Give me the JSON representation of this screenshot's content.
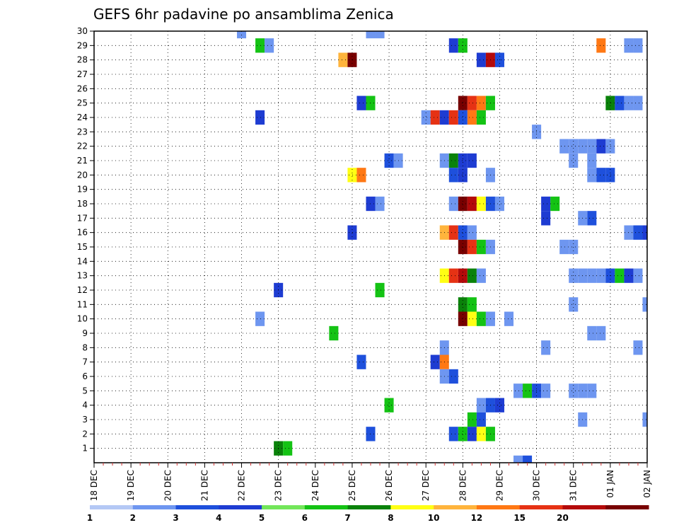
{
  "chart_data": {
    "type": "heatmap",
    "title": "GEFS 6hr padavine po ansamblima Zenica",
    "xlabel": "",
    "ylabel": "",
    "x_tick_labels": [
      "18 DEC",
      "19 DEC",
      "20 DEC",
      "21 DEC",
      "22 DEC",
      "23 DEC",
      "24 DEC",
      "25 DEC",
      "26 DEC",
      "27 DEC",
      "28 DEC",
      "29 DEC",
      "30 DEC",
      "31 DEC",
      "01 JAN",
      "02 JAN"
    ],
    "y_tick_labels": [
      "1",
      "2",
      "3",
      "4",
      "5",
      "6",
      "7",
      "8",
      "9",
      "10",
      "11",
      "12",
      "13",
      "14",
      "15",
      "16",
      "17",
      "18",
      "19",
      "20",
      "21",
      "22",
      "23",
      "24",
      "25",
      "26",
      "27",
      "28",
      "29",
      "30"
    ],
    "xlim": [
      "18 DEC 00Z",
      "02 JAN 00Z"
    ],
    "ylim": [
      0,
      30
    ],
    "x_step_hours": 6,
    "grid": true,
    "legend_position": "bottom",
    "colorbar": {
      "labels": [
        "1",
        "2",
        "3",
        "4",
        "5",
        "6",
        "7",
        "8",
        "10",
        "12",
        "15",
        "20"
      ],
      "colors": [
        "#b4c8f5",
        "#6e96f0",
        "#1e50dc",
        "#1e3cd2",
        "#73e65a",
        "#14c314",
        "#0a820a",
        "#ffff14",
        "#ffb43c",
        "#ff7814",
        "#e63214",
        "#b40a0a",
        "#780000"
      ]
    },
    "cells": [
      {
        "t": "22 DEC 00Z",
        "member": 30,
        "value": 1
      },
      {
        "t": "25 DEC 12Z",
        "member": 30,
        "value": 1
      },
      {
        "t": "25 DEC 18Z",
        "member": 30,
        "value": 1
      },
      {
        "t": "22 DEC 12Z",
        "member": 29,
        "value": 5
      },
      {
        "t": "22 DEC 18Z",
        "member": 29,
        "value": 1
      },
      {
        "t": "27 DEC 18Z",
        "member": 29,
        "value": 3
      },
      {
        "t": "28 DEC 00Z",
        "member": 29,
        "value": 5
      },
      {
        "t": "31 DEC 18Z",
        "member": 29,
        "value": 10
      },
      {
        "t": "01 JAN 12Z",
        "member": 29,
        "value": 1
      },
      {
        "t": "01 JAN 18Z",
        "member": 29,
        "value": 1
      },
      {
        "t": "24 DEC 18Z",
        "member": 28,
        "value": 8
      },
      {
        "t": "25 DEC 00Z",
        "member": 28,
        "value": 20
      },
      {
        "t": "28 DEC 12Z",
        "member": 28,
        "value": 3
      },
      {
        "t": "28 DEC 18Z",
        "member": 28,
        "value": 15
      },
      {
        "t": "29 DEC 00Z",
        "member": 28,
        "value": 2
      },
      {
        "t": "25 DEC 06Z",
        "member": 25,
        "value": 3
      },
      {
        "t": "25 DEC 12Z",
        "member": 25,
        "value": 5
      },
      {
        "t": "28 DEC 00Z",
        "member": 25,
        "value": 20
      },
      {
        "t": "28 DEC 06Z",
        "member": 25,
        "value": 12
      },
      {
        "t": "28 DEC 12Z",
        "member": 25,
        "value": 10
      },
      {
        "t": "28 DEC 18Z",
        "member": 25,
        "value": 5
      },
      {
        "t": "01 JAN 00Z",
        "member": 25,
        "value": 6
      },
      {
        "t": "01 JAN 06Z",
        "member": 25,
        "value": 2
      },
      {
        "t": "01 JAN 12Z",
        "member": 25,
        "value": 1
      },
      {
        "t": "01 JAN 18Z",
        "member": 25,
        "value": 1
      },
      {
        "t": "22 DEC 12Z",
        "member": 24,
        "value": 3
      },
      {
        "t": "27 DEC 00Z",
        "member": 24,
        "value": 1
      },
      {
        "t": "27 DEC 06Z",
        "member": 24,
        "value": 12
      },
      {
        "t": "27 DEC 12Z",
        "member": 24,
        "value": 3
      },
      {
        "t": "27 DEC 18Z",
        "member": 24,
        "value": 12
      },
      {
        "t": "28 DEC 00Z",
        "member": 24,
        "value": 2
      },
      {
        "t": "28 DEC 06Z",
        "member": 24,
        "value": 10
      },
      {
        "t": "28 DEC 12Z",
        "member": 24,
        "value": 5
      },
      {
        "t": "30 DEC 00Z",
        "member": 23,
        "value": 1
      },
      {
        "t": "30 DEC 18Z",
        "member": 22,
        "value": 1
      },
      {
        "t": "31 DEC 00Z",
        "member": 22,
        "value": 1
      },
      {
        "t": "31 DEC 06Z",
        "member": 22,
        "value": 1
      },
      {
        "t": "31 DEC 12Z",
        "member": 22,
        "value": 1
      },
      {
        "t": "31 DEC 18Z",
        "member": 22,
        "value": 3
      },
      {
        "t": "01 JAN 00Z",
        "member": 22,
        "value": 1
      },
      {
        "t": "26 DEC 00Z",
        "member": 21,
        "value": 2
      },
      {
        "t": "26 DEC 06Z",
        "member": 21,
        "value": 1
      },
      {
        "t": "27 DEC 12Z",
        "member": 21,
        "value": 1
      },
      {
        "t": "27 DEC 18Z",
        "member": 21,
        "value": 6
      },
      {
        "t": "28 DEC 00Z",
        "member": 21,
        "value": 3
      },
      {
        "t": "28 DEC 06Z",
        "member": 21,
        "value": 3
      },
      {
        "t": "31 DEC 00Z",
        "member": 21,
        "value": 1
      },
      {
        "t": "31 DEC 12Z",
        "member": 21,
        "value": 1
      },
      {
        "t": "25 DEC 00Z",
        "member": 20,
        "value": 7
      },
      {
        "t": "25 DEC 06Z",
        "member": 20,
        "value": 10
      },
      {
        "t": "27 DEC 18Z",
        "member": 20,
        "value": 2
      },
      {
        "t": "28 DEC 00Z",
        "member": 20,
        "value": 3
      },
      {
        "t": "28 DEC 18Z",
        "member": 20,
        "value": 1
      },
      {
        "t": "31 DEC 12Z",
        "member": 20,
        "value": 1
      },
      {
        "t": "31 DEC 18Z",
        "member": 20,
        "value": 2
      },
      {
        "t": "01 JAN 00Z",
        "member": 20,
        "value": 2
      },
      {
        "t": "25 DEC 12Z",
        "member": 18,
        "value": 3
      },
      {
        "t": "25 DEC 18Z",
        "member": 18,
        "value": 1
      },
      {
        "t": "27 DEC 18Z",
        "member": 18,
        "value": 1
      },
      {
        "t": "28 DEC 00Z",
        "member": 18,
        "value": 20
      },
      {
        "t": "28 DEC 06Z",
        "member": 18,
        "value": 15
      },
      {
        "t": "28 DEC 12Z",
        "member": 18,
        "value": 7
      },
      {
        "t": "28 DEC 18Z",
        "member": 18,
        "value": 2
      },
      {
        "t": "29 DEC 00Z",
        "member": 18,
        "value": 1
      },
      {
        "t": "30 DEC 06Z",
        "member": 18,
        "value": 3
      },
      {
        "t": "30 DEC 12Z",
        "member": 18,
        "value": 5
      },
      {
        "t": "30 DEC 06Z",
        "member": 17,
        "value": 3
      },
      {
        "t": "31 DEC 12Z",
        "member": 17,
        "value": 2
      },
      {
        "t": "31 DEC 06Z",
        "member": 17,
        "value": 1
      },
      {
        "t": "25 DEC 00Z",
        "member": 16,
        "value": 3
      },
      {
        "t": "27 DEC 12Z",
        "member": 16,
        "value": 8
      },
      {
        "t": "27 DEC 18Z",
        "member": 16,
        "value": 12
      },
      {
        "t": "28 DEC 00Z",
        "member": 16,
        "value": 2
      },
      {
        "t": "28 DEC 06Z",
        "member": 16,
        "value": 1
      },
      {
        "t": "01 JAN 12Z",
        "member": 16,
        "value": 1
      },
      {
        "t": "01 JAN 18Z",
        "member": 16,
        "value": 2
      },
      {
        "t": "02 JAN 00Z",
        "member": 16,
        "value": 3
      },
      {
        "t": "28 DEC 00Z",
        "member": 15,
        "value": 20
      },
      {
        "t": "28 DEC 06Z",
        "member": 15,
        "value": 12
      },
      {
        "t": "28 DEC 12Z",
        "member": 15,
        "value": 5
      },
      {
        "t": "28 DEC 18Z",
        "member": 15,
        "value": 1
      },
      {
        "t": "30 DEC 18Z",
        "member": 15,
        "value": 1
      },
      {
        "t": "31 DEC 00Z",
        "member": 15,
        "value": 1
      },
      {
        "t": "27 DEC 12Z",
        "member": 13,
        "value": 7
      },
      {
        "t": "27 DEC 18Z",
        "member": 13,
        "value": 12
      },
      {
        "t": "28 DEC 00Z",
        "member": 13,
        "value": 15
      },
      {
        "t": "28 DEC 06Z",
        "member": 13,
        "value": 6
      },
      {
        "t": "28 DEC 12Z",
        "member": 13,
        "value": 1
      },
      {
        "t": "31 DEC 00Z",
        "member": 13,
        "value": 1
      },
      {
        "t": "31 DEC 06Z",
        "member": 13,
        "value": 1
      },
      {
        "t": "31 DEC 12Z",
        "member": 13,
        "value": 1
      },
      {
        "t": "31 DEC 18Z",
        "member": 13,
        "value": 1
      },
      {
        "t": "01 JAN 00Z",
        "member": 13,
        "value": 2
      },
      {
        "t": "01 JAN 06Z",
        "member": 13,
        "value": 5
      },
      {
        "t": "01 JAN 12Z",
        "member": 13,
        "value": 3
      },
      {
        "t": "01 JAN 18Z",
        "member": 13,
        "value": 1
      },
      {
        "t": "23 DEC 00Z",
        "member": 12,
        "value": 3
      },
      {
        "t": "25 DEC 18Z",
        "member": 12,
        "value": 5
      },
      {
        "t": "28 DEC 00Z",
        "member": 11,
        "value": 6
      },
      {
        "t": "28 DEC 06Z",
        "member": 11,
        "value": 5
      },
      {
        "t": "31 DEC 00Z",
        "member": 11,
        "value": 1
      },
      {
        "t": "02 JAN 00Z",
        "member": 11,
        "value": 1
      },
      {
        "t": "22 DEC 12Z",
        "member": 10,
        "value": 1
      },
      {
        "t": "28 DEC 00Z",
        "member": 10,
        "value": 20
      },
      {
        "t": "28 DEC 06Z",
        "member": 10,
        "value": 7
      },
      {
        "t": "28 DEC 12Z",
        "member": 10,
        "value": 5
      },
      {
        "t": "28 DEC 18Z",
        "member": 10,
        "value": 1
      },
      {
        "t": "29 DEC 06Z",
        "member": 10,
        "value": 1
      },
      {
        "t": "24 DEC 12Z",
        "member": 9,
        "value": 5
      },
      {
        "t": "31 DEC 12Z",
        "member": 9,
        "value": 1
      },
      {
        "t": "31 DEC 18Z",
        "member": 9,
        "value": 1
      },
      {
        "t": "27 DEC 12Z",
        "member": 8,
        "value": 1
      },
      {
        "t": "30 DEC 06Z",
        "member": 8,
        "value": 1
      },
      {
        "t": "01 JAN 18Z",
        "member": 8,
        "value": 1
      },
      {
        "t": "25 DEC 06Z",
        "member": 7,
        "value": 2
      },
      {
        "t": "27 DEC 06Z",
        "member": 7,
        "value": 3
      },
      {
        "t": "27 DEC 12Z",
        "member": 7,
        "value": 10
      },
      {
        "t": "27 DEC 12Z",
        "member": 6,
        "value": 1
      },
      {
        "t": "27 DEC 18Z",
        "member": 6,
        "value": 2
      },
      {
        "t": "29 DEC 12Z",
        "member": 5,
        "value": 1
      },
      {
        "t": "29 DEC 18Z",
        "member": 5,
        "value": 5
      },
      {
        "t": "30 DEC 00Z",
        "member": 5,
        "value": 2
      },
      {
        "t": "30 DEC 06Z",
        "member": 5,
        "value": 1
      },
      {
        "t": "31 DEC 00Z",
        "member": 5,
        "value": 1
      },
      {
        "t": "31 DEC 06Z",
        "member": 5,
        "value": 1
      },
      {
        "t": "31 DEC 12Z",
        "member": 5,
        "value": 1
      },
      {
        "t": "26 DEC 00Z",
        "member": 4,
        "value": 5
      },
      {
        "t": "28 DEC 12Z",
        "member": 4,
        "value": 1
      },
      {
        "t": "28 DEC 18Z",
        "member": 4,
        "value": 2
      },
      {
        "t": "29 DEC 00Z",
        "member": 4,
        "value": 3
      },
      {
        "t": "28 DEC 06Z",
        "member": 3,
        "value": 5
      },
      {
        "t": "28 DEC 12Z",
        "member": 3,
        "value": 2
      },
      {
        "t": "31 DEC 06Z",
        "member": 3,
        "value": 1
      },
      {
        "t": "02 JAN 00Z",
        "member": 3,
        "value": 1
      },
      {
        "t": "25 DEC 12Z",
        "member": 2,
        "value": 2
      },
      {
        "t": "27 DEC 18Z",
        "member": 2,
        "value": 2
      },
      {
        "t": "28 DEC 00Z",
        "member": 2,
        "value": 5
      },
      {
        "t": "28 DEC 06Z",
        "member": 2,
        "value": 3
      },
      {
        "t": "28 DEC 12Z",
        "member": 2,
        "value": 7
      },
      {
        "t": "28 DEC 18Z",
        "member": 2,
        "value": 5
      },
      {
        "t": "23 DEC 00Z",
        "member": 1,
        "value": 6
      },
      {
        "t": "23 DEC 06Z",
        "member": 1,
        "value": 5
      },
      {
        "t": "29 DEC 12Z",
        "member": 0,
        "value": 1
      },
      {
        "t": "29 DEC 18Z",
        "member": 0,
        "value": 2
      }
    ]
  }
}
